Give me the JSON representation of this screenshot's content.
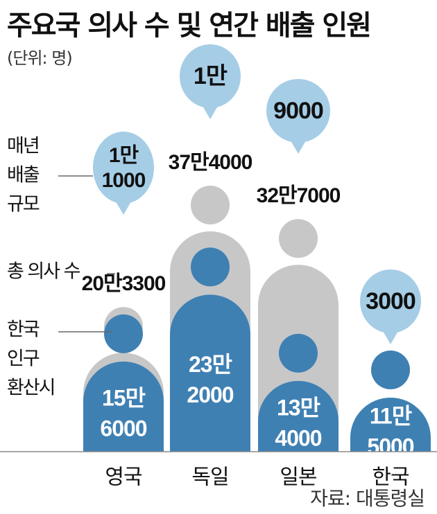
{
  "title": "주요국 의사 수 및 연간 배출 인원",
  "unit_label": "(단위: 명)",
  "source": "자료: 대통령실",
  "legend": {
    "annual": [
      "매년",
      "배출",
      "규모"
    ],
    "total": "총 의사 수",
    "adjusted": [
      "한국",
      "인구",
      "환산시"
    ]
  },
  "chart_data": {
    "type": "bar",
    "categories": [
      "영국",
      "독일",
      "일본",
      "한국"
    ],
    "series": [
      {
        "name": "총 의사 수",
        "values": [
          203300,
          374000,
          327000,
          null
        ],
        "labels": [
          "20만3300",
          "37만4000",
          "32만7000",
          null
        ]
      },
      {
        "name": "한국 인구 환산시",
        "values": [
          156000,
          232000,
          134000,
          115000
        ],
        "labels": [
          "15만|6000",
          "23만|2000",
          "13만|4000",
          "11만|5000"
        ]
      },
      {
        "name": "매년 배출 규모",
        "values": [
          11000,
          10000,
          9000,
          3000
        ],
        "labels": [
          "1만|1000",
          "1만",
          "9000",
          "3000"
        ]
      }
    ]
  },
  "colors": {
    "total_bar": "#c7c7c7",
    "adjusted_bar": "#3f80b3",
    "bubble": "#a5cde6",
    "axis": "#888888"
  }
}
